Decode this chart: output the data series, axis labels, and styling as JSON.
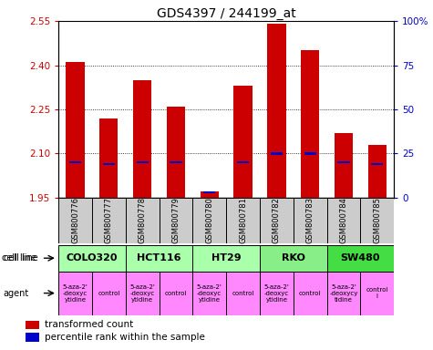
{
  "title": "GDS4397 / 244199_at",
  "samples": [
    "GSM800776",
    "GSM800777",
    "GSM800778",
    "GSM800779",
    "GSM800780",
    "GSM800781",
    "GSM800782",
    "GSM800783",
    "GSM800784",
    "GSM800785"
  ],
  "transformed_count": [
    2.41,
    2.22,
    2.35,
    2.26,
    1.97,
    2.33,
    2.54,
    2.45,
    2.17,
    2.13
  ],
  "percentile_rank": [
    0.2,
    0.19,
    0.2,
    0.2,
    0.03,
    0.2,
    0.25,
    0.25,
    0.2,
    0.19
  ],
  "bar_base": 1.95,
  "ylim": [
    1.95,
    2.55
  ],
  "yticks_left": [
    1.95,
    2.1,
    2.25,
    2.4,
    2.55
  ],
  "yticks_right": [
    0,
    25,
    50,
    75,
    100
  ],
  "cell_lines": [
    {
      "name": "COLO320",
      "start": 0,
      "end": 2,
      "color": "#aaffaa"
    },
    {
      "name": "HCT116",
      "start": 2,
      "end": 4,
      "color": "#aaffaa"
    },
    {
      "name": "HT29",
      "start": 4,
      "end": 6,
      "color": "#aaffaa"
    },
    {
      "name": "RKO",
      "start": 6,
      "end": 8,
      "color": "#88ee88"
    },
    {
      "name": "SW480",
      "start": 8,
      "end": 10,
      "color": "#44dd44"
    }
  ],
  "agents": [
    {
      "name": "5-aza-2'\n-deoxyc\nytidine",
      "start": 0,
      "end": 1,
      "color": "#ff88ff"
    },
    {
      "name": "control",
      "start": 1,
      "end": 2,
      "color": "#ff88ff"
    },
    {
      "name": "5-aza-2'\n-deoxyc\nytidine",
      "start": 2,
      "end": 3,
      "color": "#ff88ff"
    },
    {
      "name": "control",
      "start": 3,
      "end": 4,
      "color": "#ff88ff"
    },
    {
      "name": "5-aza-2'\n-deoxyc\nytidine",
      "start": 4,
      "end": 5,
      "color": "#ff88ff"
    },
    {
      "name": "control",
      "start": 5,
      "end": 6,
      "color": "#ff88ff"
    },
    {
      "name": "5-aza-2'\n-deoxyc\nytidine",
      "start": 6,
      "end": 7,
      "color": "#ff88ff"
    },
    {
      "name": "control",
      "start": 7,
      "end": 8,
      "color": "#ff88ff"
    },
    {
      "name": "5-aza-2'\n-deoxycy\ntidine",
      "start": 8,
      "end": 9,
      "color": "#ff88ff"
    },
    {
      "name": "control\nl",
      "start": 9,
      "end": 10,
      "color": "#ff88ff"
    }
  ],
  "bar_color": "#cc0000",
  "percentile_color": "#0000cc",
  "left_axis_color": "#cc0000",
  "right_axis_color": "#0000cc",
  "bar_width": 0.55,
  "sample_bg_color": "#cccccc"
}
